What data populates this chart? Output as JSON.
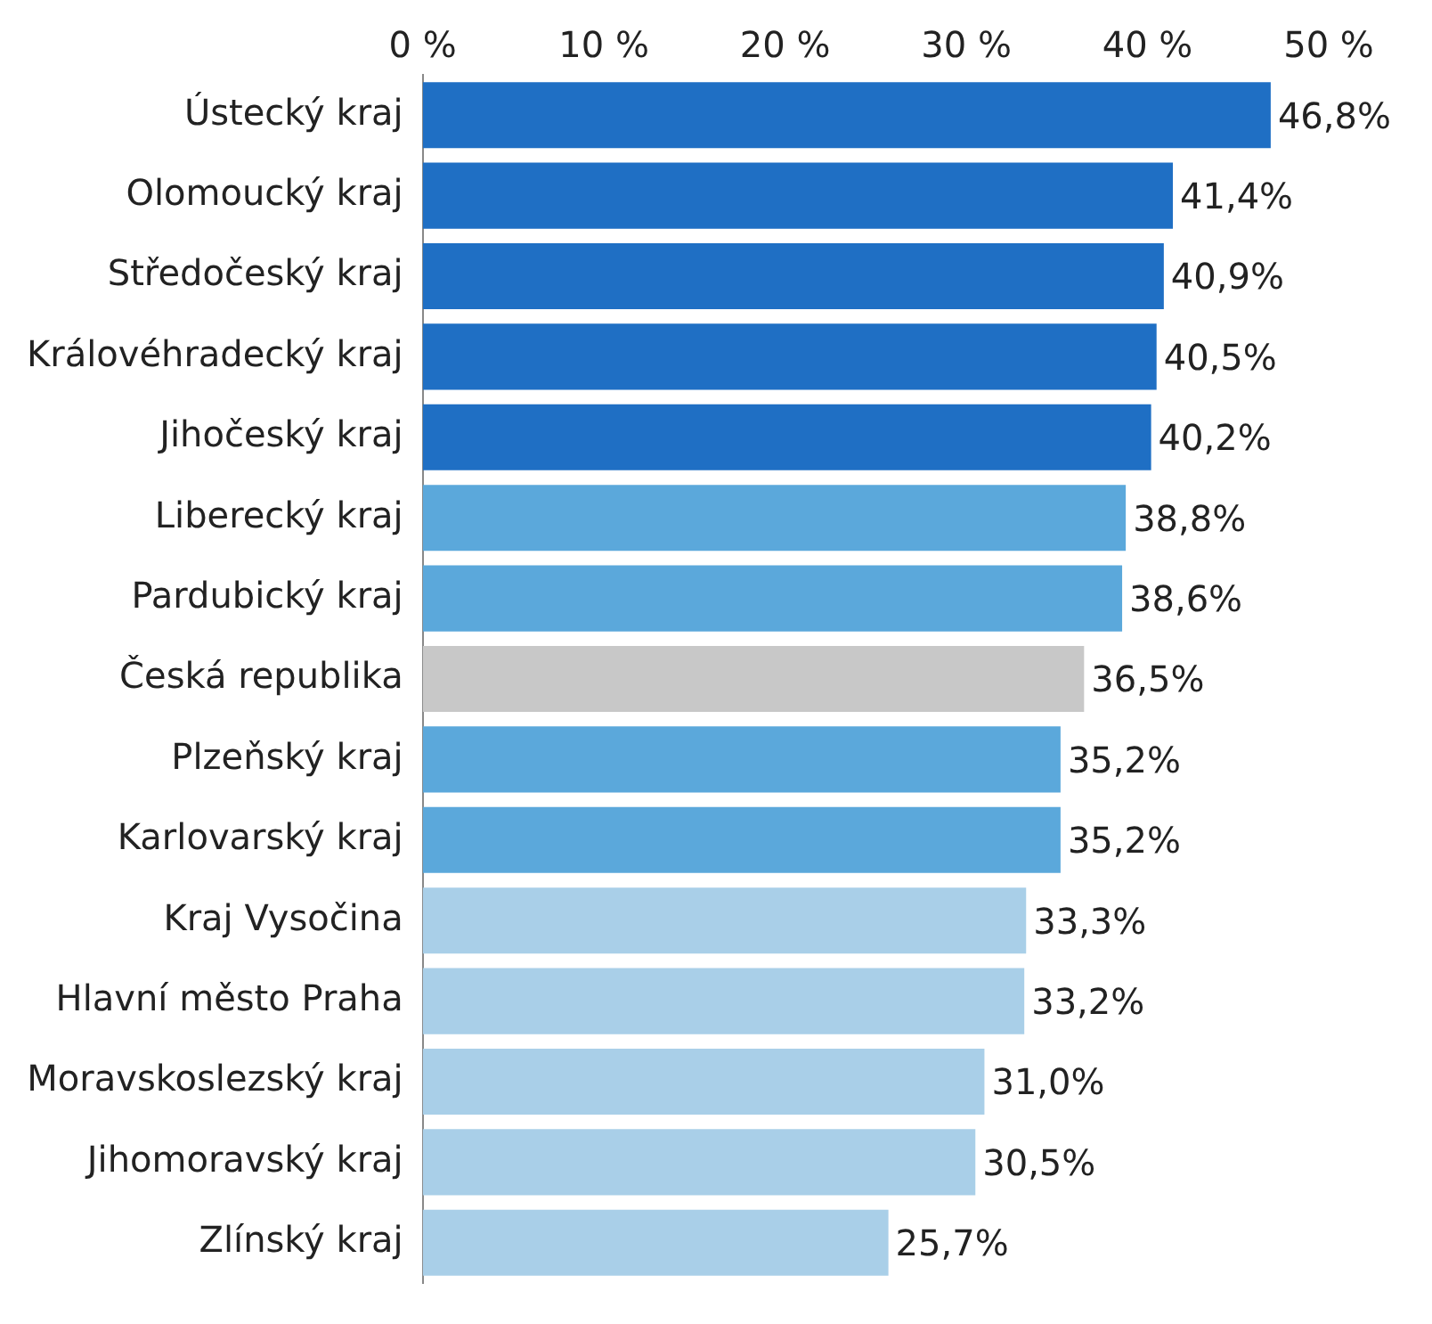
{
  "chart_data": {
    "type": "bar",
    "orientation": "horizontal",
    "grid": false,
    "categories": [
      "Ústecký kraj",
      "Olomoucký kraj",
      "Středočeský kraj",
      "Královéhradecký kraj",
      "Jihočeský kraj",
      "Liberecký kraj",
      "Pardubický kraj",
      "Česká republika",
      "Plzeňský kraj",
      "Karlovarský kraj",
      "Kraj Vysočina",
      "Hlavní město Praha",
      "Moravskoslezský kraj",
      "Jihomoravský kraj",
      "Zlínský kraj"
    ],
    "values": [
      46.8,
      41.4,
      40.9,
      40.5,
      40.2,
      38.8,
      38.6,
      36.5,
      35.2,
      35.2,
      33.3,
      33.2,
      31.0,
      30.5,
      25.7
    ],
    "colors": [
      "#1f6fc4",
      "#1f6fc4",
      "#1f6fc4",
      "#1f6fc4",
      "#1f6fc4",
      "#5ba8db",
      "#5ba8db",
      "#c8c8c8",
      "#5ba8db",
      "#5ba8db",
      "#a9cfe8",
      "#a9cfe8",
      "#a9cfe8",
      "#a9cfe8",
      "#a9cfe8"
    ],
    "value_labels": [
      "46,8%",
      "41,4%",
      "40,9%",
      "40,5%",
      "40,2%",
      "38,8%",
      "38,6%",
      "36,5%",
      "35,2%",
      "35,2%",
      "33,3%",
      "33,2%",
      "31,0%",
      "30,5%",
      "25,7%"
    ],
    "xlim": [
      0,
      50
    ],
    "xticks": [
      {
        "value": 0,
        "label": "0 %"
      },
      {
        "value": 10,
        "label": "10 %"
      },
      {
        "value": 20,
        "label": "20 %"
      },
      {
        "value": 30,
        "label": "30 %"
      },
      {
        "value": 40,
        "label": "40 %"
      },
      {
        "value": 50,
        "label": "50 %"
      }
    ]
  }
}
